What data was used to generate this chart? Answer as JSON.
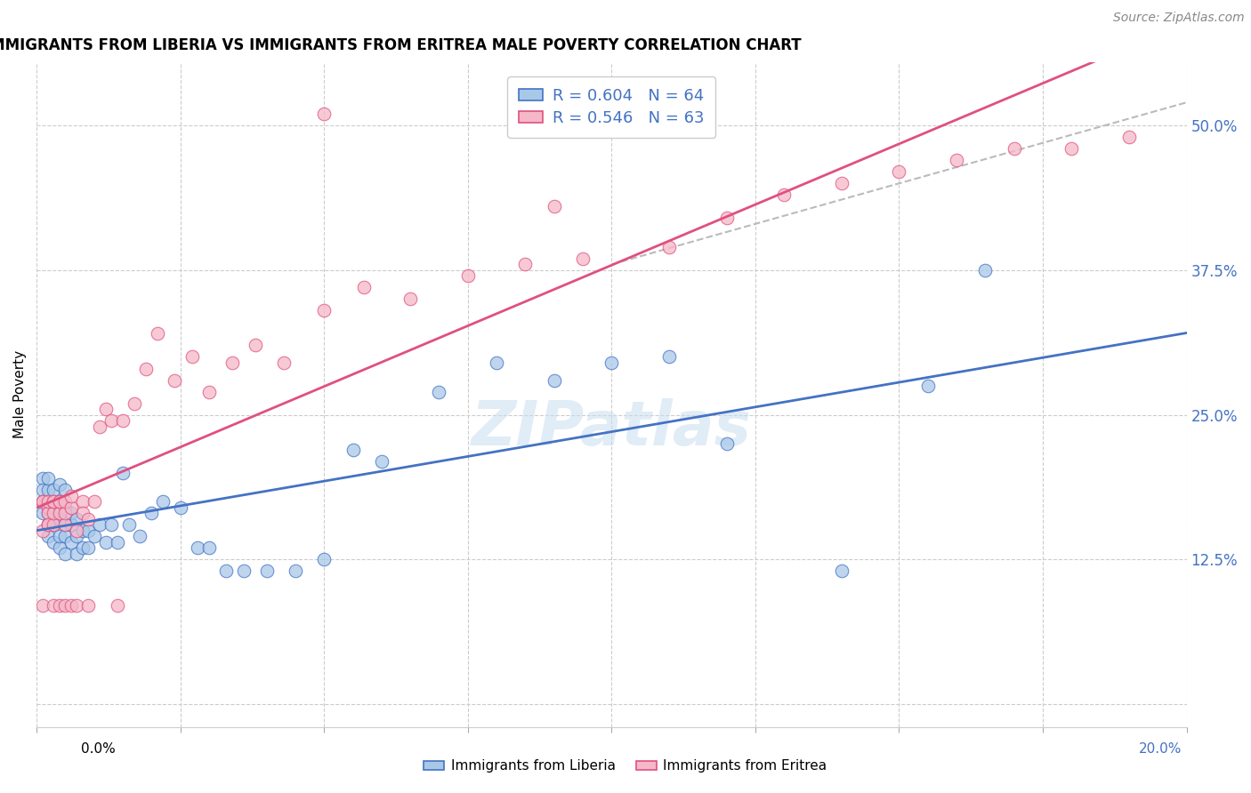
{
  "title": "IMMIGRANTS FROM LIBERIA VS IMMIGRANTS FROM ERITREA MALE POVERTY CORRELATION CHART",
  "source": "Source: ZipAtlas.com",
  "ylabel": "Male Poverty",
  "xlim": [
    0.0,
    0.2
  ],
  "ylim": [
    0.0,
    0.55
  ],
  "plot_ylim": [
    -0.02,
    0.555
  ],
  "liberia_R": 0.604,
  "liberia_N": 64,
  "eritrea_R": 0.546,
  "eritrea_N": 63,
  "liberia_color": "#a8c8e8",
  "eritrea_color": "#f4b8c8",
  "liberia_line_color": "#4472c4",
  "eritrea_line_color": "#e05080",
  "watermark": "ZIPatlas",
  "liberia_x": [
    0.001,
    0.001,
    0.001,
    0.001,
    0.002,
    0.002,
    0.002,
    0.002,
    0.002,
    0.002,
    0.003,
    0.003,
    0.003,
    0.003,
    0.003,
    0.004,
    0.004,
    0.004,
    0.004,
    0.004,
    0.005,
    0.005,
    0.005,
    0.005,
    0.005,
    0.006,
    0.006,
    0.006,
    0.007,
    0.007,
    0.007,
    0.008,
    0.008,
    0.009,
    0.009,
    0.01,
    0.011,
    0.012,
    0.013,
    0.014,
    0.015,
    0.016,
    0.018,
    0.02,
    0.022,
    0.025,
    0.028,
    0.03,
    0.033,
    0.036,
    0.04,
    0.045,
    0.05,
    0.055,
    0.06,
    0.07,
    0.08,
    0.09,
    0.1,
    0.11,
    0.12,
    0.14,
    0.155,
    0.165
  ],
  "liberia_y": [
    0.175,
    0.195,
    0.185,
    0.165,
    0.155,
    0.145,
    0.165,
    0.175,
    0.185,
    0.195,
    0.14,
    0.155,
    0.165,
    0.175,
    0.185,
    0.135,
    0.145,
    0.16,
    0.175,
    0.19,
    0.13,
    0.145,
    0.155,
    0.17,
    0.185,
    0.14,
    0.155,
    0.165,
    0.13,
    0.145,
    0.16,
    0.135,
    0.15,
    0.135,
    0.15,
    0.145,
    0.155,
    0.14,
    0.155,
    0.14,
    0.2,
    0.155,
    0.145,
    0.165,
    0.175,
    0.17,
    0.135,
    0.135,
    0.115,
    0.115,
    0.115,
    0.115,
    0.125,
    0.22,
    0.21,
    0.27,
    0.295,
    0.28,
    0.295,
    0.3,
    0.225,
    0.115,
    0.275,
    0.375
  ],
  "eritrea_x": [
    0.001,
    0.001,
    0.001,
    0.001,
    0.002,
    0.002,
    0.002,
    0.002,
    0.002,
    0.003,
    0.003,
    0.003,
    0.003,
    0.003,
    0.004,
    0.004,
    0.004,
    0.004,
    0.005,
    0.005,
    0.005,
    0.005,
    0.006,
    0.006,
    0.006,
    0.007,
    0.007,
    0.008,
    0.008,
    0.009,
    0.009,
    0.01,
    0.011,
    0.012,
    0.013,
    0.014,
    0.015,
    0.017,
    0.019,
    0.021,
    0.024,
    0.027,
    0.03,
    0.034,
    0.038,
    0.043,
    0.05,
    0.057,
    0.065,
    0.075,
    0.085,
    0.095,
    0.11,
    0.12,
    0.13,
    0.14,
    0.15,
    0.16,
    0.17,
    0.18,
    0.19,
    0.05,
    0.09
  ],
  "eritrea_y": [
    0.15,
    0.175,
    0.175,
    0.085,
    0.17,
    0.155,
    0.165,
    0.175,
    0.155,
    0.155,
    0.165,
    0.175,
    0.175,
    0.085,
    0.165,
    0.175,
    0.175,
    0.085,
    0.155,
    0.165,
    0.175,
    0.085,
    0.17,
    0.18,
    0.085,
    0.15,
    0.085,
    0.175,
    0.165,
    0.16,
    0.085,
    0.175,
    0.24,
    0.255,
    0.245,
    0.085,
    0.245,
    0.26,
    0.29,
    0.32,
    0.28,
    0.3,
    0.27,
    0.295,
    0.31,
    0.295,
    0.34,
    0.36,
    0.35,
    0.37,
    0.38,
    0.385,
    0.395,
    0.42,
    0.44,
    0.45,
    0.46,
    0.47,
    0.48,
    0.48,
    0.49,
    0.51,
    0.43
  ],
  "ref_line_x": [
    0.1,
    0.2
  ],
  "ref_line_y": [
    0.38,
    0.52
  ],
  "yticks": [
    0.0,
    0.125,
    0.25,
    0.375,
    0.5
  ],
  "ytick_labels": [
    "",
    "12.5%",
    "25.0%",
    "37.5%",
    "50.0%"
  ],
  "xtick_positions": [
    0.0,
    0.025,
    0.05,
    0.075,
    0.1,
    0.125,
    0.15,
    0.175,
    0.2
  ]
}
